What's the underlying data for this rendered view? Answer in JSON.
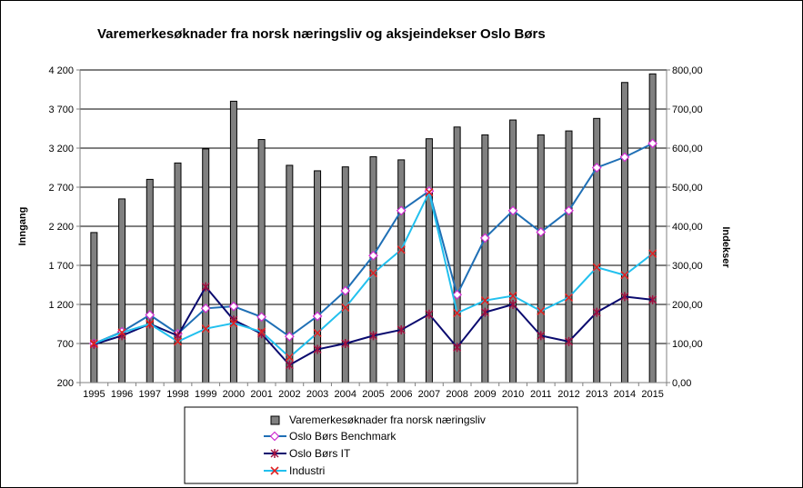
{
  "chart_data": {
    "type": "bar+line",
    "title": "Varemerkesøknader  fra  norsk  næringsliv  og  aksjeindekser  Oslo  Børs",
    "categories": [
      "1995",
      "1996",
      "1997",
      "1998",
      "1999",
      "2000",
      "2001",
      "2002",
      "2003",
      "2004",
      "2005",
      "2006",
      "2007",
      "2008",
      "2009",
      "2010",
      "2011",
      "2012",
      "2013",
      "2014",
      "2015"
    ],
    "y_left": {
      "label": "Inngang",
      "range": [
        200,
        4200
      ],
      "ticks": [
        200,
        700,
        1200,
        1700,
        2200,
        2700,
        3200,
        3700,
        4200
      ],
      "tick_labels": [
        "200",
        "700",
        "1 200",
        "1 700",
        "2 200",
        "2 700",
        "3 200",
        "3 700",
        "4 200"
      ]
    },
    "y_right": {
      "label": "Indekser",
      "range": [
        0,
        800
      ],
      "ticks": [
        0,
        100,
        200,
        300,
        400,
        500,
        600,
        700,
        800
      ],
      "tick_labels": [
        "0,00",
        "100,00",
        "200,00",
        "300,00",
        "400,00",
        "500,00",
        "600,00",
        "700,00",
        "800,00"
      ]
    },
    "grid": "horizontal",
    "legend_position": "bottom",
    "bar_series": {
      "name": "Varemerkesøknader fra norsk næringsliv",
      "axis": "left",
      "color": "#808080",
      "values": [
        2120,
        2550,
        2800,
        3010,
        3190,
        3800,
        3310,
        2980,
        2910,
        2960,
        3090,
        3050,
        3320,
        3470,
        3370,
        3560,
        3370,
        3420,
        3580,
        4040,
        4150
      ]
    },
    "line_series": [
      {
        "name": "Oslo Børs Benchmark",
        "axis": "right",
        "color": "#1f6fb5",
        "marker": "diamond",
        "marker_color": "#d02cd0",
        "values": [
          100,
          130,
          173,
          125,
          190,
          195,
          168,
          118,
          170,
          235,
          325,
          440,
          490,
          225,
          370,
          440,
          385,
          440,
          550,
          577,
          612
        ]
      },
      {
        "name": "Oslo Børs IT",
        "axis": "right",
        "color": "#0a0a6e",
        "marker": "star",
        "marker_color": "#a01040",
        "values": [
          98,
          120,
          150,
          120,
          245,
          160,
          125,
          45,
          85,
          100,
          120,
          135,
          175,
          90,
          180,
          200,
          120,
          105,
          180,
          220,
          212
        ]
      },
      {
        "name": "Industri",
        "axis": "right",
        "color": "#22c0ee",
        "marker": "x",
        "marker_color": "#e02020",
        "values": [
          100,
          128,
          150,
          105,
          138,
          152,
          130,
          65,
          127,
          192,
          280,
          340,
          487,
          178,
          210,
          222,
          183,
          218,
          295,
          275,
          330
        ]
      }
    ]
  }
}
